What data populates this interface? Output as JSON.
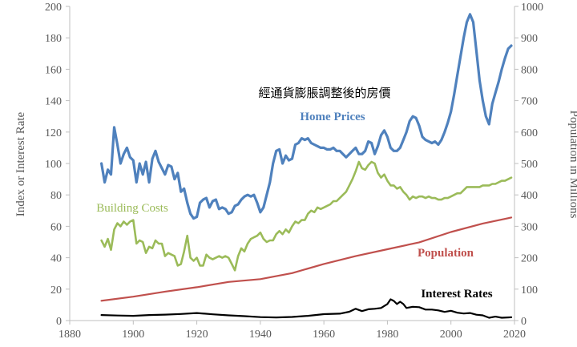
{
  "chart_data": {
    "type": "line",
    "title": "經通貨膨脹調整後的房價",
    "xlabel": "",
    "ylabel": "Index or Interest Rate",
    "y2label": "Population in Millions",
    "xlim": [
      1880,
      2020
    ],
    "ylim": [
      0,
      200
    ],
    "y2lim": [
      0,
      1000
    ],
    "x_ticks": [
      "1880",
      "1900",
      "1920",
      "1940",
      "1960",
      "1980",
      "2000",
      "2020"
    ],
    "y_ticks": [
      "0",
      "20",
      "40",
      "60",
      "80",
      "100",
      "120",
      "140",
      "160",
      "180",
      "200"
    ],
    "y2_ticks": [
      "0",
      "100",
      "200",
      "300",
      "400",
      "500",
      "600",
      "700",
      "800",
      "900",
      "1000"
    ],
    "grid": false,
    "series": [
      {
        "name": "Home Prices",
        "axis": "left",
        "color": "#4f81bd",
        "x": [
          1890,
          1891,
          1892,
          1893,
          1894,
          1895,
          1896,
          1897,
          1898,
          1899,
          1900,
          1901,
          1902,
          1903,
          1904,
          1905,
          1906,
          1907,
          1908,
          1909,
          1910,
          1911,
          1912,
          1913,
          1914,
          1915,
          1916,
          1917,
          1918,
          1919,
          1920,
          1921,
          1922,
          1923,
          1924,
          1925,
          1926,
          1927,
          1928,
          1929,
          1930,
          1931,
          1932,
          1933,
          1934,
          1935,
          1936,
          1937,
          1938,
          1939,
          1940,
          1941,
          1942,
          1943,
          1944,
          1945,
          1946,
          1947,
          1948,
          1949,
          1950,
          1951,
          1952,
          1953,
          1954,
          1955,
          1956,
          1957,
          1958,
          1959,
          1960,
          1961,
          1962,
          1963,
          1964,
          1965,
          1966,
          1967,
          1968,
          1969,
          1970,
          1971,
          1972,
          1973,
          1974,
          1975,
          1976,
          1977,
          1978,
          1979,
          1980,
          1981,
          1982,
          1983,
          1984,
          1985,
          1986,
          1987,
          1988,
          1989,
          1990,
          1991,
          1992,
          1993,
          1994,
          1995,
          1996,
          1997,
          1998,
          1999,
          2000,
          2001,
          2002,
          2003,
          2004,
          2005,
          2006,
          2007,
          2008,
          2009,
          2010,
          2011,
          2012,
          2013,
          2014,
          2015,
          2016,
          2017,
          2018,
          2019
        ],
        "values": [
          100,
          88,
          96,
          93,
          123,
          112,
          100,
          106,
          110,
          104,
          102,
          88,
          100,
          93,
          101,
          88,
          103,
          108,
          101,
          97,
          93,
          99,
          98,
          90,
          94,
          82,
          84,
          75,
          68,
          65,
          66,
          75,
          77,
          78,
          72,
          76,
          77,
          71,
          72,
          71,
          68,
          69,
          73,
          74,
          77,
          79,
          80,
          79,
          80,
          75,
          69,
          72,
          80,
          88,
          100,
          108,
          109,
          100,
          105,
          102,
          103,
          112,
          113,
          116,
          115,
          116,
          113,
          112,
          111,
          110,
          110,
          109,
          109,
          110,
          108,
          108,
          106,
          104,
          106,
          108,
          110,
          106,
          106,
          108,
          114,
          113,
          106,
          111,
          118,
          121,
          117,
          110,
          108,
          108,
          110,
          115,
          120,
          127,
          130,
          129,
          124,
          117,
          115,
          114,
          113,
          114,
          112,
          115,
          120,
          126,
          133,
          144,
          156,
          168,
          180,
          190,
          195,
          190,
          172,
          153,
          140,
          130,
          125,
          138,
          145,
          152,
          160,
          167,
          173,
          175
        ]
      },
      {
        "name": "Building Costs",
        "axis": "left",
        "color": "#9bbb59",
        "x": [
          1890,
          1891,
          1892,
          1893,
          1894,
          1895,
          1896,
          1897,
          1898,
          1899,
          1900,
          1901,
          1902,
          1903,
          1904,
          1905,
          1906,
          1907,
          1908,
          1909,
          1910,
          1911,
          1912,
          1913,
          1914,
          1915,
          1916,
          1917,
          1918,
          1919,
          1920,
          1921,
          1922,
          1923,
          1924,
          1925,
          1926,
          1927,
          1928,
          1929,
          1930,
          1931,
          1932,
          1933,
          1934,
          1935,
          1936,
          1937,
          1938,
          1939,
          1940,
          1941,
          1942,
          1943,
          1944,
          1945,
          1946,
          1947,
          1948,
          1949,
          1950,
          1951,
          1952,
          1953,
          1954,
          1955,
          1956,
          1957,
          1958,
          1959,
          1960,
          1961,
          1962,
          1963,
          1964,
          1965,
          1966,
          1967,
          1968,
          1969,
          1970,
          1971,
          1972,
          1973,
          1974,
          1975,
          1976,
          1977,
          1978,
          1979,
          1980,
          1981,
          1982,
          1983,
          1984,
          1985,
          1986,
          1987,
          1988,
          1989,
          1990,
          1991,
          1992,
          1993,
          1994,
          1995,
          1996,
          1997,
          1998,
          1999,
          2000,
          2001,
          2002,
          2003,
          2004,
          2005,
          2006,
          2007,
          2008,
          2009,
          2010,
          2011,
          2012,
          2013,
          2014,
          2015,
          2016,
          2017,
          2018,
          2019
        ],
        "values": [
          51,
          47,
          52,
          45,
          58,
          62,
          60,
          63,
          61,
          63,
          64,
          49,
          51,
          50,
          43,
          47,
          46,
          51,
          49,
          49,
          41,
          43,
          42,
          41,
          35,
          36,
          44,
          54,
          40,
          38,
          40,
          35,
          35,
          42,
          40,
          39,
          40,
          41,
          40,
          41,
          40,
          36,
          32,
          41,
          46,
          44,
          49,
          52,
          53,
          54,
          56,
          52,
          50,
          51,
          51,
          55,
          57,
          55,
          58,
          56,
          60,
          63,
          62,
          64,
          64,
          68,
          70,
          69,
          72,
          71,
          72,
          73,
          74,
          76,
          76,
          78,
          80,
          82,
          86,
          90,
          95,
          101,
          97,
          96,
          99,
          101,
          100,
          94,
          91,
          93,
          89,
          86,
          86,
          84,
          85,
          82,
          80,
          77,
          79,
          78,
          79,
          79,
          78,
          79,
          78,
          78,
          77,
          77,
          78,
          78,
          79,
          80,
          81,
          81,
          83,
          85,
          85,
          85,
          85,
          85,
          86,
          86,
          86,
          87,
          87,
          88,
          89,
          89,
          90,
          91
        ]
      },
      {
        "name": "Population",
        "axis": "right",
        "color": "#c0504d",
        "x": [
          1890,
          1900,
          1910,
          1920,
          1930,
          1940,
          1950,
          1960,
          1970,
          1980,
          1990,
          2000,
          2010,
          2019
        ],
        "values": [
          63,
          76,
          92,
          106,
          123,
          132,
          151,
          180,
          205,
          227,
          249,
          282,
          309,
          328
        ]
      },
      {
        "name": "Interest Rates",
        "axis": "left",
        "color": "#000000",
        "x": [
          1890,
          1895,
          1900,
          1905,
          1910,
          1915,
          1920,
          1925,
          1930,
          1935,
          1940,
          1945,
          1950,
          1955,
          1960,
          1965,
          1968,
          1970,
          1972,
          1974,
          1976,
          1978,
          1980,
          1981,
          1982,
          1983,
          1984,
          1985,
          1986,
          1988,
          1990,
          1992,
          1994,
          1996,
          1998,
          2000,
          2002,
          2004,
          2006,
          2008,
          2010,
          2012,
          2014,
          2016,
          2019
        ],
        "values": [
          3.5,
          3.2,
          3.0,
          3.5,
          3.8,
          4.2,
          4.8,
          4.0,
          3.3,
          2.8,
          2.2,
          2.0,
          2.3,
          3.0,
          4.1,
          4.4,
          5.6,
          7.5,
          6.0,
          7.2,
          7.5,
          8.0,
          10.5,
          13.5,
          12.5,
          10.5,
          12.0,
          10.5,
          8.0,
          8.8,
          8.5,
          7.0,
          7.0,
          6.5,
          5.5,
          6.2,
          5.0,
          4.5,
          4.8,
          3.7,
          3.3,
          1.8,
          2.5,
          1.8,
          2.1
        ]
      }
    ],
    "annotations": {
      "home_prices": "Home Prices",
      "building_costs": "Building Costs",
      "population": "Population",
      "interest_rates": "Interest Rates"
    }
  }
}
